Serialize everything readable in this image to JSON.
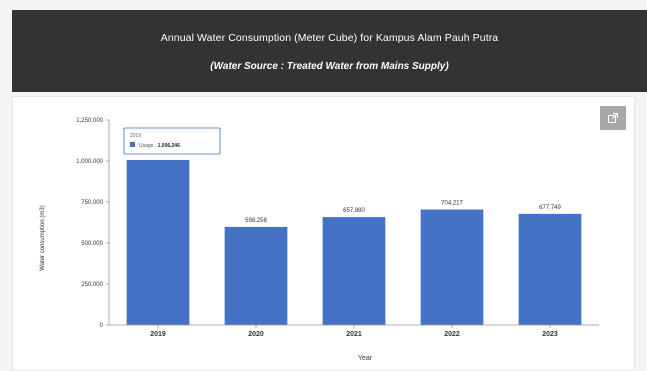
{
  "header": {
    "title": "Annual Water Consumption (Meter Cube) for Kampus Alam Pauh Putra",
    "subtitle": "(Water Source : Treated Water from Mains Supply)"
  },
  "export_button": {
    "icon": "export-icon"
  },
  "tooltip": {
    "year": "2019",
    "series": "Usage",
    "value": "1,006,246"
  },
  "colors": {
    "bar": "#4472c4",
    "header_bg": "#333333",
    "export_bg": "#a8a8a8"
  },
  "chart_data": {
    "type": "bar",
    "categories": [
      "2019",
      "2020",
      "2021",
      "2022",
      "2023"
    ],
    "series": [
      {
        "name": "Usage",
        "values": [
          1006246,
          598258,
          657880,
          704217,
          677749
        ]
      }
    ],
    "data_labels": [
      "",
      "598,258",
      "657,880",
      "704,217",
      "677,749"
    ],
    "xlabel": "Year",
    "ylabel": "Water consumption (m3)",
    "ylim": [
      0,
      1250000
    ],
    "yticks": [
      "0",
      "250,000",
      "500,000",
      "750,000",
      "1,000,000",
      "1,250,000"
    ],
    "grid": false,
    "legend": "none"
  }
}
